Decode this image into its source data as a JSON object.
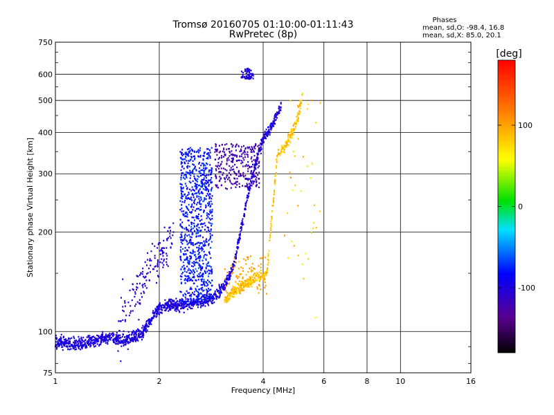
{
  "chart_data": {
    "type": "scatter",
    "title": "Tromsø 20160705 01:10:00-01:11:43",
    "subtitle": "RwPretec (8p)",
    "xlabel": "Frequency [MHz]",
    "ylabel": "Stationary phase Virtual Height [km]",
    "xscale": "log",
    "yscale": "log",
    "xlim": [
      1,
      16
    ],
    "ylim": [
      75,
      750
    ],
    "grid": true,
    "x_ticks": [
      "1",
      "2",
      "4",
      "6",
      "8",
      "10",
      "16"
    ],
    "x_tick_values": [
      1,
      2,
      4,
      6,
      8,
      10,
      16
    ],
    "y_ticks": [
      "75",
      "100",
      "200",
      "300",
      "400",
      "500",
      "600",
      "750"
    ],
    "y_tick_values": [
      75,
      100,
      200,
      300,
      400,
      500,
      600,
      750
    ],
    "stats": {
      "heading": "Phases",
      "line_o": "mean, sd,O: -98.4, 16.8",
      "line_x": "mean, sd,X:  85.0, 20.1"
    },
    "colorbar": {
      "label": "[deg]",
      "range": [
        -180,
        180
      ],
      "ticks": [
        "100",
        "0",
        "-100"
      ],
      "tick_values": [
        100,
        0,
        -100
      ]
    },
    "series": [
      {
        "mode": "O",
        "phase_mean_deg": -98.4,
        "phase_sd_deg": 16.8,
        "trace": [
          [
            1.0,
            93
          ],
          [
            1.1,
            92
          ],
          [
            1.2,
            92
          ],
          [
            1.3,
            94
          ],
          [
            1.4,
            96
          ],
          [
            1.5,
            95
          ],
          [
            1.6,
            94
          ],
          [
            1.7,
            96
          ],
          [
            1.8,
            100
          ],
          [
            1.9,
            110
          ],
          [
            2.0,
            118
          ],
          [
            2.1,
            120
          ],
          [
            2.3,
            121
          ],
          [
            2.5,
            122
          ],
          [
            2.7,
            124
          ],
          [
            2.9,
            128
          ],
          [
            3.1,
            138
          ],
          [
            3.3,
            160
          ],
          [
            3.5,
            220
          ],
          [
            3.7,
            290
          ],
          [
            3.9,
            350
          ],
          [
            4.0,
            380
          ],
          [
            4.1,
            400
          ],
          [
            4.3,
            430
          ],
          [
            4.5,
            480
          ]
        ]
      },
      {
        "mode": "X",
        "phase_mean_deg": 85.0,
        "phase_sd_deg": 20.1,
        "trace": [
          [
            3.1,
            125
          ],
          [
            3.3,
            132
          ],
          [
            3.5,
            138
          ],
          [
            3.8,
            145
          ],
          [
            4.1,
            150
          ],
          [
            4.4,
            345
          ],
          [
            4.6,
            360
          ],
          [
            4.8,
            390
          ],
          [
            5.0,
            430
          ],
          [
            5.1,
            470
          ],
          [
            5.2,
            520
          ]
        ]
      }
    ]
  }
}
